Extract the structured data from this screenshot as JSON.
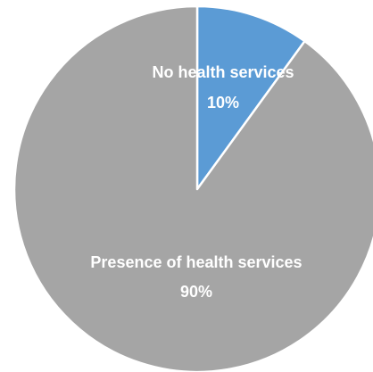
{
  "chart_data": {
    "type": "pie",
    "title": "",
    "slices": [
      {
        "label": "No health services",
        "value": 10,
        "value_label": "10%",
        "color": "#5b9bd5"
      },
      {
        "label": "Presence of health services",
        "value": 90,
        "value_label": "90%",
        "color": "#a5a5a5"
      }
    ],
    "start_angle": "12 o'clock",
    "direction": "clockwise",
    "slice_border_color": "#ffffff",
    "legend": "none",
    "data_labels": "inside"
  }
}
